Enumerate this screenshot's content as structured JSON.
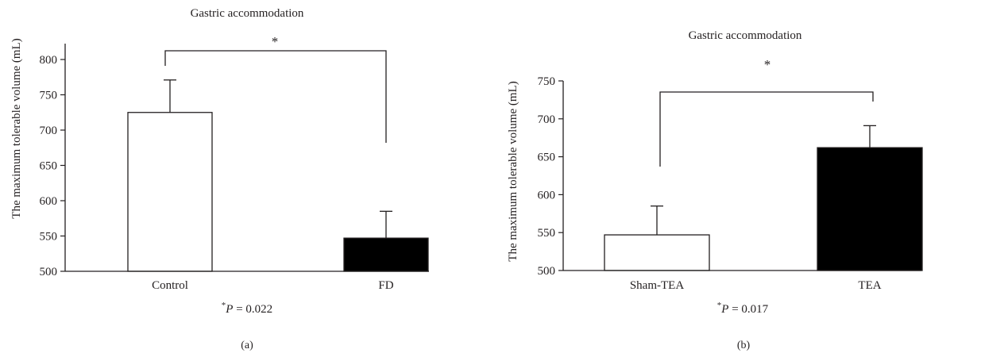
{
  "chart_data": [
    {
      "type": "bar",
      "title": "Gastric accommodation",
      "xlabel": "",
      "ylabel": "The maximum tolerable volume (mL)",
      "categories": [
        "Control",
        "FD"
      ],
      "values": [
        725,
        547
      ],
      "errors": [
        46,
        38
      ],
      "bar_colors": [
        "#ffffff",
        "#000000"
      ],
      "ylim": [
        500,
        800
      ],
      "yticks": [
        500,
        550,
        600,
        650,
        700,
        750,
        800
      ],
      "significance": {
        "marker": "*",
        "p_star": "*",
        "p_label": "P",
        "p_rest": " = 0.022"
      },
      "panel_label": "(a)"
    },
    {
      "type": "bar",
      "title": "Gastric accommodation",
      "xlabel": "",
      "ylabel": "The maximum tolerable volume (mL)",
      "categories": [
        "Sham-TEA",
        "TEA"
      ],
      "values": [
        547,
        662
      ],
      "errors": [
        38,
        29
      ],
      "bar_colors": [
        "#ffffff",
        "#000000"
      ],
      "ylim": [
        500,
        750
      ],
      "yticks": [
        500,
        550,
        600,
        650,
        700,
        750
      ],
      "significance": {
        "marker": "*",
        "p_star": "*",
        "p_label": "P",
        "p_rest": " = 0.017"
      },
      "panel_label": "(b)"
    }
  ]
}
